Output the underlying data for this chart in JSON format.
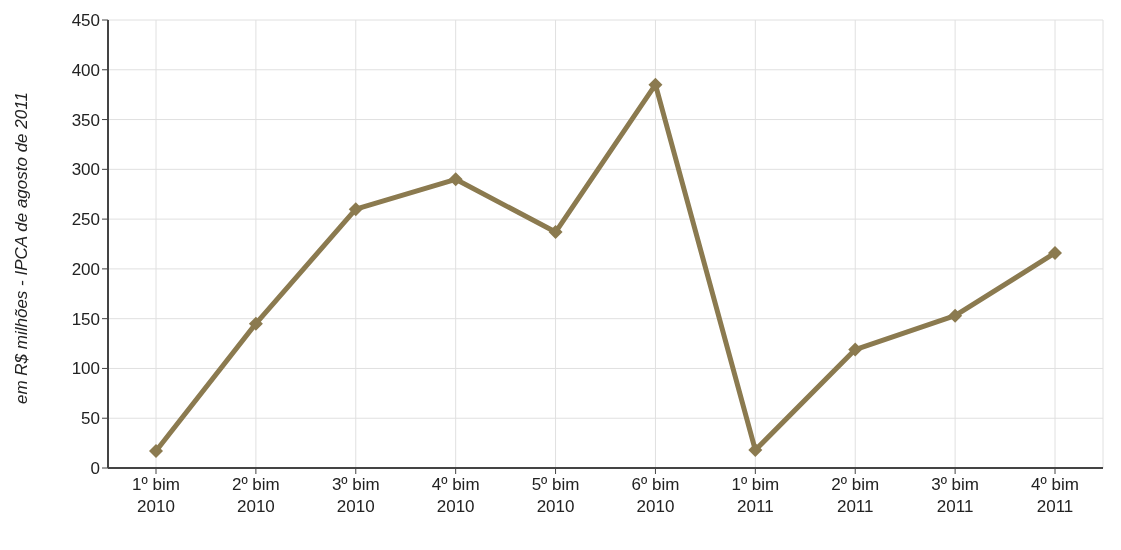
{
  "chart_data": {
    "type": "line",
    "ylabel": "em R$ milhões - IPCA de agosto de 2011",
    "categories": [
      "1º bim\n2010",
      "2º bim\n2010",
      "3º bim\n2010",
      "4º bim\n2010",
      "5º bim\n2010",
      "6º bim\n2010",
      "1º bim\n2011",
      "2º bim\n2011",
      "3º bim\n2011",
      "4º bim\n2011"
    ],
    "series": [
      {
        "color": "#8b7a4f",
        "values": [
          17,
          145,
          260,
          290,
          237,
          385,
          18,
          119,
          153,
          216
        ]
      }
    ],
    "ylim": [
      0,
      450
    ],
    "yticks": [
      0,
      50,
      100,
      150,
      200,
      250,
      300,
      350,
      400,
      450
    ],
    "grid": true,
    "legend": false,
    "marker": "diamond",
    "line_style": "solid"
  }
}
